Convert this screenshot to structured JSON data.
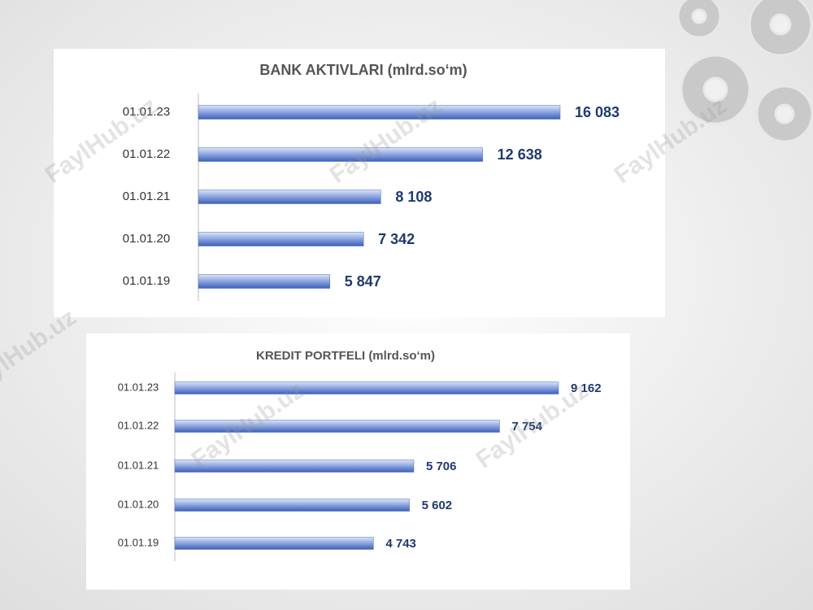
{
  "watermark": "FaylHub.uz",
  "chart_data": [
    {
      "type": "bar",
      "orientation": "horizontal",
      "title": "BANK AKTIVLARI (mlrd.so‘m)",
      "categories": [
        "01.01.23",
        "01.01.22",
        "01.01.21",
        "01.01.20",
        "01.01.19"
      ],
      "values": [
        16083,
        12638,
        8108,
        7342,
        5847
      ],
      "value_labels": [
        "16 083",
        "12 638",
        "8 108",
        "7 342",
        "5 847"
      ],
      "color": "#4a6cc4"
    },
    {
      "type": "bar",
      "orientation": "horizontal",
      "title": "KREDIT PORTFELI (mlrd.so‘m)",
      "categories": [
        "01.01.23",
        "01.01.22",
        "01.01.21",
        "01.01.20",
        "01.01.19"
      ],
      "values": [
        9162,
        7754,
        5706,
        5602,
        4743
      ],
      "value_labels": [
        "9 162",
        "7 754",
        "5 706",
        "5 602",
        "4 743"
      ],
      "color": "#4a6cc4"
    }
  ]
}
